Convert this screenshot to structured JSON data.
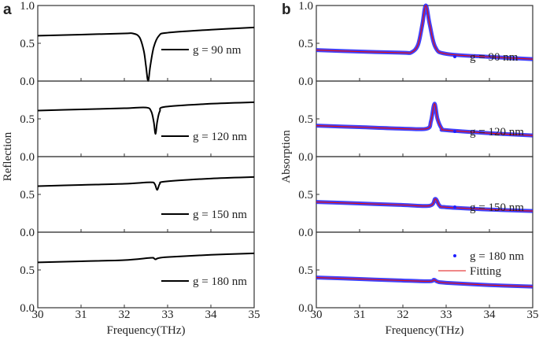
{
  "chart_data": [
    {
      "panel_label": "a",
      "type": "line",
      "xlabel": "Frequency(THz)",
      "ylabel": "Reflection",
      "xlim": [
        30,
        35
      ],
      "ylim": [
        0,
        1
      ],
      "x_ticks": [
        "30",
        "31",
        "32",
        "33",
        "34",
        "35"
      ],
      "y_ticks": [
        "0.0",
        "0.5",
        "1.0"
      ],
      "line_color": "#000000",
      "subplots": [
        {
          "legend": "g = 90 nm",
          "x": [
            30,
            31,
            32,
            32.2,
            32.35,
            32.45,
            32.5,
            32.55,
            32.6,
            32.68,
            32.8,
            33,
            34,
            35
          ],
          "y": [
            0.6,
            0.615,
            0.63,
            0.63,
            0.58,
            0.4,
            0.2,
            0.0,
            0.2,
            0.45,
            0.6,
            0.64,
            0.68,
            0.71
          ]
        },
        {
          "legend": "g = 120 nm",
          "x": [
            30,
            31,
            32,
            32.5,
            32.62,
            32.68,
            32.72,
            32.76,
            32.82,
            32.95,
            34,
            35
          ],
          "y": [
            0.61,
            0.625,
            0.64,
            0.65,
            0.6,
            0.46,
            0.3,
            0.46,
            0.6,
            0.66,
            0.7,
            0.72
          ]
        },
        {
          "legend": "g = 150 nm",
          "x": [
            30,
            31,
            32,
            32.6,
            32.7,
            32.76,
            32.82,
            32.95,
            34,
            35
          ],
          "y": [
            0.61,
            0.625,
            0.64,
            0.66,
            0.64,
            0.56,
            0.64,
            0.67,
            0.71,
            0.73
          ]
        },
        {
          "legend": "g = 180 nm",
          "x": [
            30,
            31,
            32,
            32.6,
            32.68,
            32.72,
            32.78,
            33,
            34,
            35
          ],
          "y": [
            0.6,
            0.615,
            0.63,
            0.66,
            0.655,
            0.64,
            0.655,
            0.67,
            0.7,
            0.72
          ]
        }
      ]
    },
    {
      "panel_label": "b",
      "type": "line",
      "xlabel": "Frequency(THz)",
      "ylabel": "Absorption",
      "xlim": [
        30,
        35
      ],
      "ylim": [
        0,
        1
      ],
      "x_ticks": [
        "30",
        "31",
        "32",
        "33",
        "34",
        "35"
      ],
      "y_ticks": [
        "0.0",
        "0.5",
        "1.0"
      ],
      "marker_color": "#1f1fff",
      "fit_color": "#e01010",
      "fit_legend": "Fitting",
      "subplots": [
        {
          "legend": "g = 90 nm",
          "x": [
            30,
            31,
            32,
            32.2,
            32.35,
            32.45,
            32.53,
            32.62,
            32.75,
            33,
            34,
            35
          ],
          "y": [
            0.41,
            0.39,
            0.375,
            0.38,
            0.48,
            0.75,
            1.0,
            0.75,
            0.45,
            0.36,
            0.32,
            0.29
          ]
        },
        {
          "legend": "g = 120 nm",
          "x": [
            30,
            31,
            32,
            32.55,
            32.65,
            32.73,
            32.8,
            32.9,
            33,
            34,
            35
          ],
          "y": [
            0.41,
            0.39,
            0.37,
            0.37,
            0.47,
            0.7,
            0.5,
            0.37,
            0.35,
            0.31,
            0.28
          ]
        },
        {
          "legend": "g = 150 nm",
          "x": [
            30,
            31,
            32,
            32.62,
            32.75,
            32.85,
            33,
            34,
            35
          ],
          "y": [
            0.4,
            0.38,
            0.36,
            0.35,
            0.44,
            0.35,
            0.33,
            0.3,
            0.28
          ]
        },
        {
          "legend": "g = 180 nm",
          "x": [
            30,
            31,
            32,
            32.62,
            32.72,
            32.8,
            33,
            34,
            35
          ],
          "y": [
            0.4,
            0.38,
            0.36,
            0.35,
            0.37,
            0.345,
            0.33,
            0.3,
            0.28
          ]
        }
      ]
    }
  ]
}
